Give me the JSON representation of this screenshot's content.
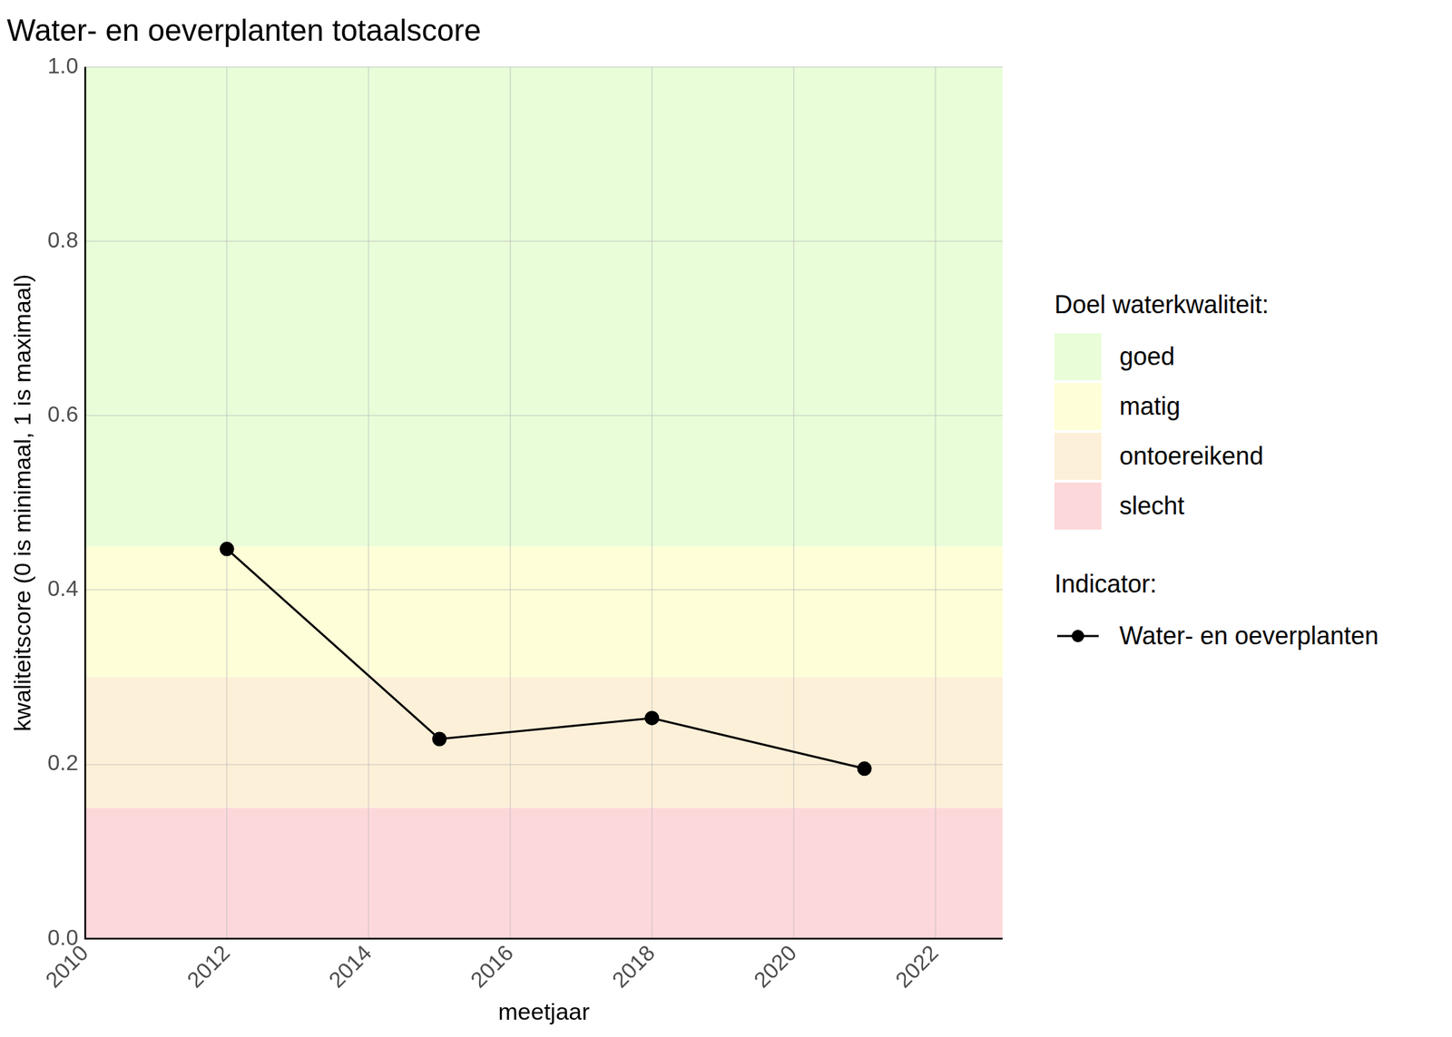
{
  "chart_data": {
    "type": "line",
    "title": "Water- en oeverplanten totaalscore",
    "x_label": "meetjaar",
    "y_label": "kwaliteitscore (0 is minimaal, 1 is maximaal)",
    "x": [
      2012,
      2015,
      2018,
      2021
    ],
    "series": [
      {
        "name": "Water- en oeverplanten",
        "color": "#000000",
        "marker": "circle",
        "line_style": "solid",
        "values": [
          0.447,
          0.229,
          0.253,
          0.195
        ]
      }
    ],
    "xlim": [
      2010,
      2022.95
    ],
    "xticks": [
      2010,
      2012,
      2014,
      2016,
      2018,
      2020,
      2022
    ],
    "ylim": [
      0,
      1
    ],
    "yticks": [
      {
        "value": 0,
        "label": "0.0"
      },
      0.2,
      0.4,
      0.6,
      0.8,
      {
        "value": 1,
        "label": "1.0"
      }
    ],
    "grid": true,
    "bands_title": "Doel waterkwaliteit:",
    "bands": [
      {
        "name": "goed",
        "from": 0.45,
        "to": 1,
        "color": "#e8fdd8"
      },
      {
        "name": "matig",
        "from": 0.3,
        "to": 0.45,
        "color": "#fefed8"
      },
      {
        "name": "ontoereikend",
        "from": 0.15,
        "to": 0.3,
        "color": "#fdf0d8"
      },
      {
        "name": "slecht",
        "from": 0,
        "to": 0.15,
        "color": "#fdd8da"
      }
    ],
    "legend_title": "Indicator:",
    "legend": "right"
  }
}
